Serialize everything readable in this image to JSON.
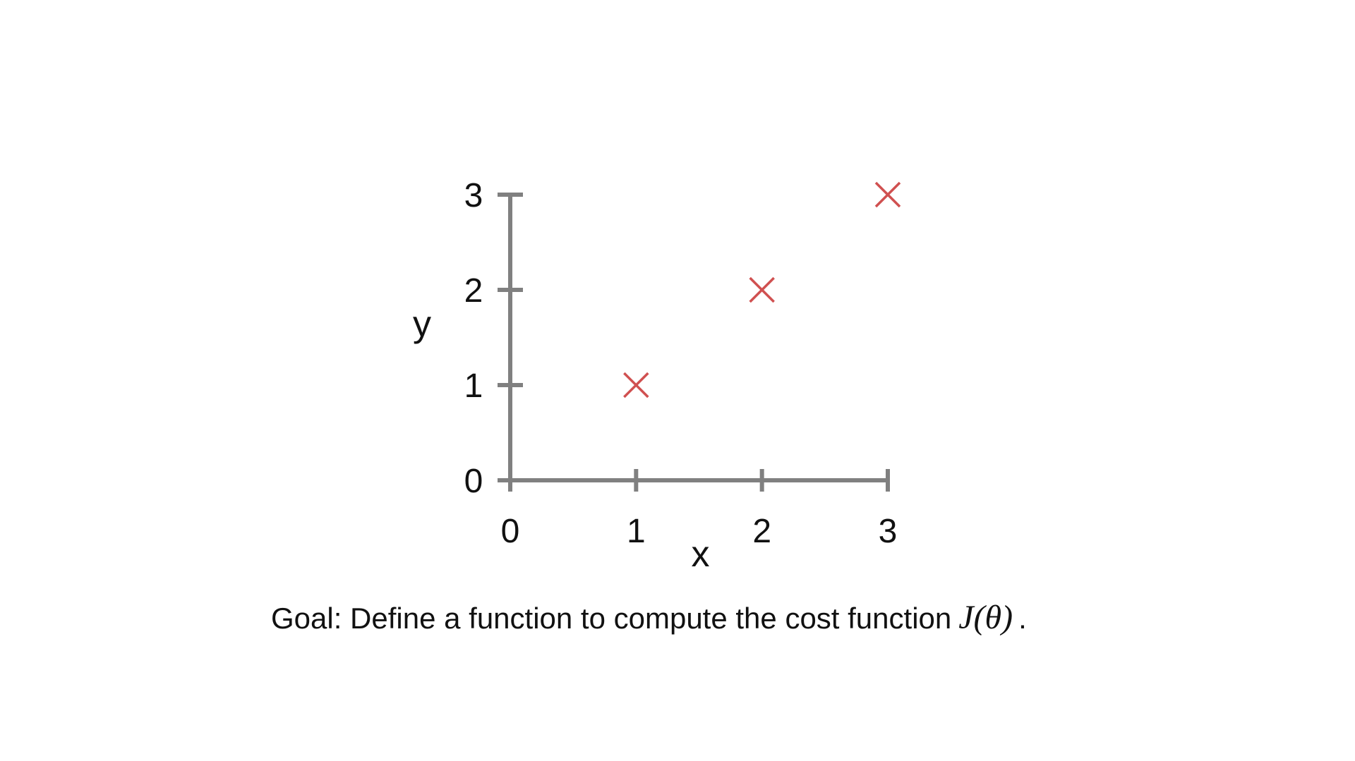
{
  "chart_data": {
    "type": "scatter",
    "x": [
      1,
      2,
      3
    ],
    "y": [
      1,
      2,
      3
    ],
    "xlabel": "x",
    "ylabel": "y",
    "xlim": [
      0,
      3
    ],
    "ylim": [
      0,
      3
    ],
    "xticks": [
      "0",
      "1",
      "2",
      "3"
    ],
    "yticks": [
      "0",
      "1",
      "2",
      "3"
    ],
    "grid": false,
    "marker": "x",
    "marker_color": "#d05050",
    "axis_color": "#808080"
  },
  "caption": {
    "text": "Goal: Define a function to compute the cost function",
    "math": "J(θ)",
    "end": "."
  }
}
